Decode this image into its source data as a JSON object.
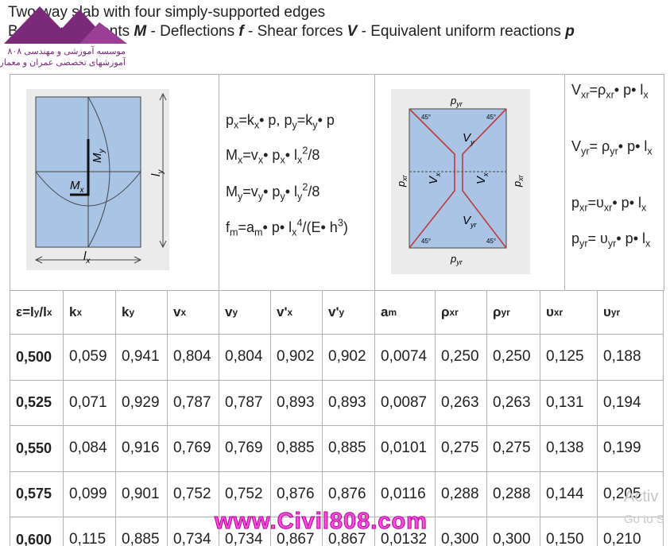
{
  "header": {
    "title": "Two-way slab with four simply-supported edges",
    "subtitle": [
      "Bending moments ",
      "M",
      " - Deflections ",
      "f",
      " - Shear forces ",
      "V",
      " - Equivalent uniform reactions ",
      "p"
    ]
  },
  "logo": {
    "line1": "موسسه آموزشی و مهندسی ۸۰۸",
    "line2": "آموزشهای تخصصی عمران و معماری"
  },
  "diagram_moments": {
    "labels": [
      [
        "M",
        "y"
      ],
      [
        "M",
        "x"
      ],
      [
        "l",
        "y"
      ],
      [
        "l",
        "x"
      ]
    ]
  },
  "formulas": [
    [
      "p",
      "x",
      "=k",
      "x",
      "• p, p",
      "y",
      "=k",
      "y",
      "• p"
    ],
    [
      "M",
      "x",
      "=v",
      "x",
      "• p",
      "x",
      "• l",
      "x",
      "2",
      "/8"
    ],
    [
      "M",
      "y",
      "=v",
      "y",
      "• p",
      "y",
      "• l",
      "y",
      "2",
      "/8"
    ],
    [
      "f",
      "m",
      "=a",
      "m",
      "• p• l",
      "x",
      "4",
      "/(E• h",
      "3",
      ")"
    ]
  ],
  "diagram_reactions": {
    "labels": [
      [
        "p",
        "yr"
      ],
      [
        "p",
        "yr"
      ],
      [
        "p",
        "xr"
      ],
      [
        "p",
        "xr"
      ],
      [
        "V",
        "y"
      ],
      [
        "V",
        "yr"
      ],
      [
        "V",
        "x"
      ],
      [
        "V",
        "x"
      ]
    ],
    "angles": [
      "45°",
      "45°",
      "45°",
      "45°"
    ]
  },
  "reactions": [
    [
      "V",
      "xr",
      "=ρ",
      "xr",
      "• p• l",
      "x"
    ],
    [
      "V",
      "yr",
      "= ρ",
      "yr",
      "• p• l",
      "x"
    ],
    [
      "p",
      "xr",
      "=υ",
      "xr",
      "• p• l",
      "x"
    ],
    [
      "p",
      "yr",
      "= υ",
      "yr",
      "• p• l",
      "x"
    ]
  ],
  "table": {
    "columns": [
      [
        "ε=l",
        "y",
        "/l",
        "x"
      ],
      [
        "k",
        "x"
      ],
      [
        "k",
        "y"
      ],
      [
        "v",
        "x"
      ],
      [
        "v",
        "y"
      ],
      [
        "v'",
        "x"
      ],
      [
        "v'",
        "y"
      ],
      [
        "a ",
        "m"
      ],
      [
        "ρ",
        "xr"
      ],
      [
        "ρ",
        "yr"
      ],
      [
        "υ",
        "xr"
      ],
      [
        "υ",
        "yr"
      ]
    ],
    "rows": [
      [
        "0,500",
        "0,059",
        "0,941",
        "0,804",
        "0,804",
        "0,902",
        "0,902",
        "0,0074",
        "0,250",
        "0,250",
        "0,125",
        "0,188"
      ],
      [
        "0,525",
        "0,071",
        "0,929",
        "0,787",
        "0,787",
        "0,893",
        "0,893",
        "0,0087",
        "0,263",
        "0,263",
        "0,131",
        "0,194"
      ],
      [
        "0,550",
        "0,084",
        "0,916",
        "0,769",
        "0,769",
        "0,885",
        "0,885",
        "0,0101",
        "0,275",
        "0,275",
        "0,138",
        "0,199"
      ],
      [
        "0,575",
        "0,099",
        "0,901",
        "0,752",
        "0,752",
        "0,876",
        "0,876",
        "0,0116",
        "0,288",
        "0,288",
        "0,144",
        "0,205"
      ],
      [
        "0,600",
        "0,115",
        "0,885",
        "0,734",
        "0,734",
        "0,867",
        "0,867",
        "0,0132",
        "0,300",
        "0,300",
        "0,150",
        "0,210"
      ]
    ]
  },
  "watermark": "www.Civil808.com",
  "system_notice": [
    "Activ",
    "Go to S"
  ]
}
